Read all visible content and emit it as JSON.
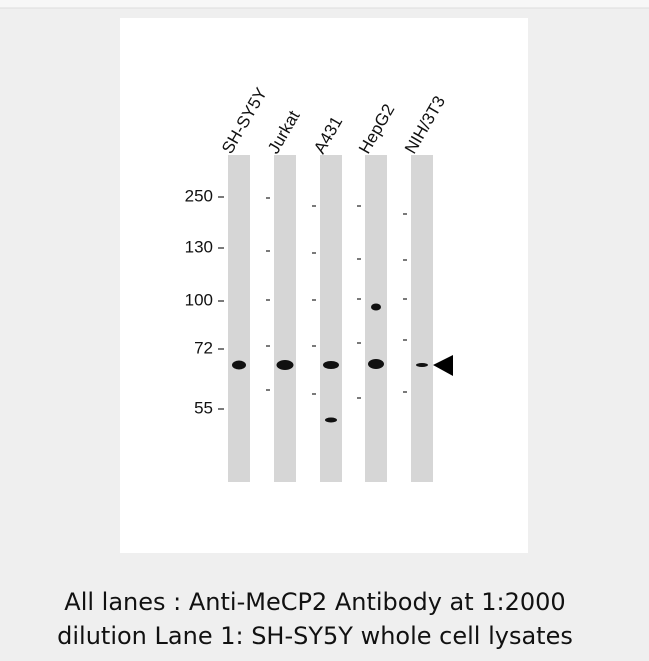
{
  "lanes": [
    "SH-SY5Y",
    "Jurkat",
    "A431",
    "HepG2",
    "NIH/3T3"
  ],
  "markers": [
    "250",
    "130",
    "100",
    "72",
    "55"
  ],
  "caption": [
    "All lanes : Anti-MeCP2 Antibody at 1:2000",
    "dilution Lane 1: SH-SY5Y whole cell lysates"
  ]
}
